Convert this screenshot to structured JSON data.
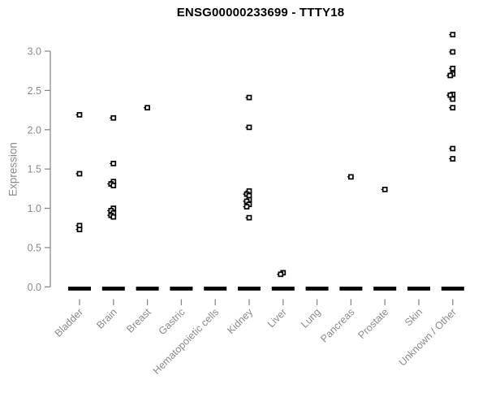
{
  "title": "ENSG00000233699 - TTTY18",
  "chart_data": {
    "type": "scatter",
    "title": "ENSG00000233699 - TTTY18",
    "xlabel": "",
    "ylabel": "Expression",
    "ylim": [
      0,
      3.25
    ],
    "y_ticks": [
      "0.0",
      "0.5",
      "1.0",
      "1.5",
      "2.0",
      "2.5",
      "3.0"
    ],
    "grid": false,
    "legend": "none",
    "marker": "open-square-black",
    "categories": [
      "Bladder",
      "Brain",
      "Breast",
      "Gastric",
      "Hematopoietic cells",
      "Kidney",
      "Liver",
      "Lung",
      "Pancreas",
      "Prostate",
      "Skin",
      "Unknown / Other"
    ],
    "series": [
      {
        "category": "Bladder",
        "points": [
          2.19,
          1.44,
          0.78,
          0.73
        ],
        "zero_cluster": true
      },
      {
        "category": "Brain",
        "points": [
          2.15,
          1.57,
          1.34,
          1.31,
          1.29,
          1.0,
          0.97,
          0.94,
          0.91,
          0.89
        ],
        "zero_cluster": true
      },
      {
        "category": "Breast",
        "points": [
          2.28
        ],
        "zero_cluster": true
      },
      {
        "category": "Gastric",
        "points": [],
        "zero_cluster": true
      },
      {
        "category": "Hematopoietic cells",
        "points": [],
        "zero_cluster": true
      },
      {
        "category": "Kidney",
        "points": [
          2.41,
          2.03,
          1.22,
          1.18,
          1.16,
          1.11,
          1.09,
          1.05,
          1.02,
          0.88
        ],
        "zero_cluster": true
      },
      {
        "category": "Liver",
        "points": [
          0.18,
          0.16
        ],
        "zero_cluster": true
      },
      {
        "category": "Lung",
        "points": [],
        "zero_cluster": true
      },
      {
        "category": "Pancreas",
        "points": [
          1.4
        ],
        "zero_cluster": true
      },
      {
        "category": "Prostate",
        "points": [
          1.24
        ],
        "zero_cluster": true
      },
      {
        "category": "Skin",
        "points": [],
        "zero_cluster": true
      },
      {
        "category": "Unknown / Other",
        "points": [
          3.21,
          2.99,
          2.78,
          2.71,
          2.69,
          2.45,
          2.44,
          2.39,
          2.28,
          1.76,
          1.63
        ],
        "zero_cluster": true
      }
    ],
    "colors": {
      "marker": "#000000",
      "axis": "#8a8a8a",
      "tick_label": "#8a8a8a",
      "title": "#000000",
      "background": "#ffffff"
    }
  }
}
